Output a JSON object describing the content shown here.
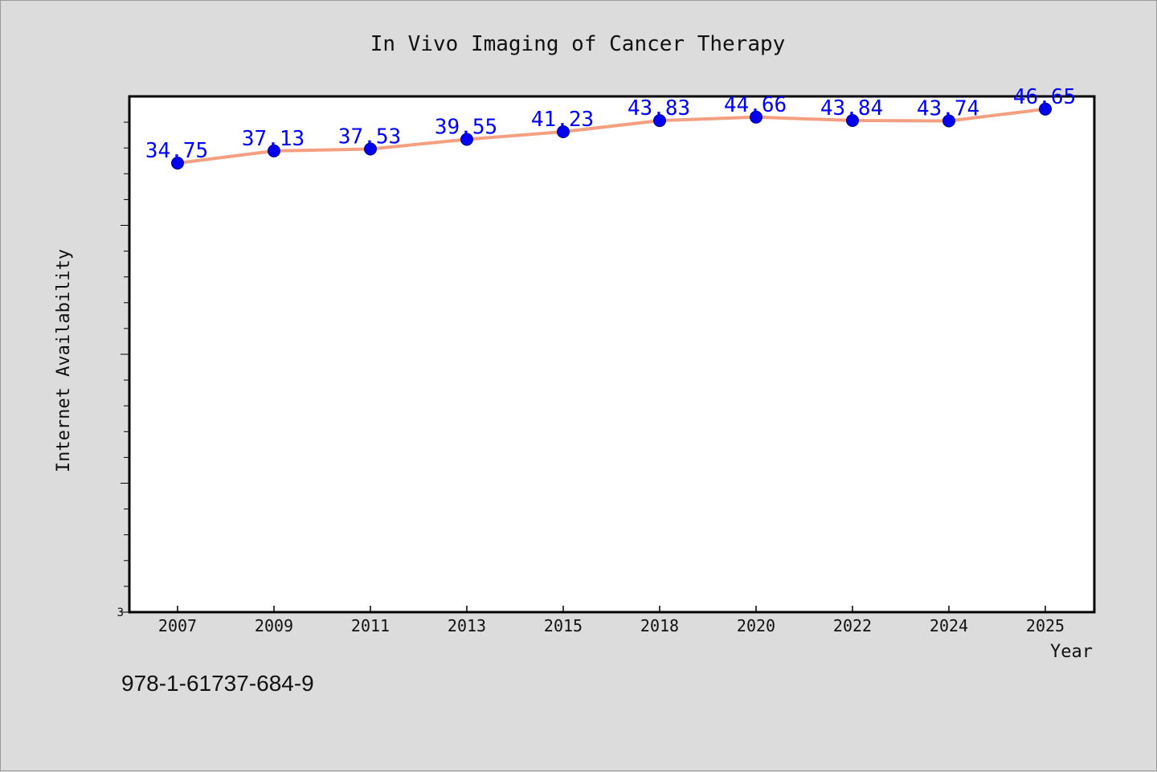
{
  "chart_data": {
    "type": "line",
    "title": "In Vivo Imaging of Cancer Therapy",
    "xlabel": "Year",
    "ylabel": "Internet Availability",
    "categories": [
      "2007",
      "2009",
      "2011",
      "2013",
      "2015",
      "2018",
      "2020",
      "2022",
      "2024",
      "2025"
    ],
    "series": [
      {
        "values": [
          34.75,
          37.13,
          37.53,
          39.55,
          41.23,
          43.83,
          44.66,
          43.84,
          43.74,
          46.65
        ],
        "value_labels": [
          "34.75",
          "37.13",
          "37.53",
          "39.55",
          "41.23",
          "43.83",
          "44.66",
          "43.84",
          "43.74",
          "46.65"
        ],
        "line_color": "#f4a080",
        "marker_color": "#0000ee"
      }
    ],
    "ylim": [
      3,
      50
    ],
    "y_scale": "log",
    "y_tick_labels": [
      "3"
    ],
    "label_color": "#0000ff",
    "grid": false
  },
  "footer": {
    "isbn": "978-1-61737-684-9"
  }
}
